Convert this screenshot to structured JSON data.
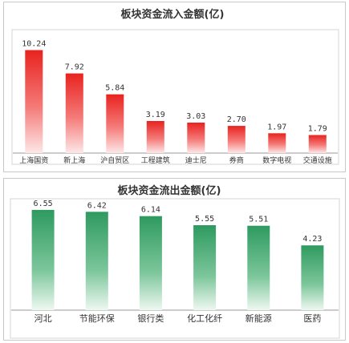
{
  "chart_data": [
    {
      "type": "bar",
      "title": "板块资金流入金额(亿)",
      "categories": [
        "上海国资",
        "新上海",
        "沪自贸区",
        "工程建筑",
        "迪士尼",
        "券商",
        "数字电视",
        "交通设施"
      ],
      "values": [
        10.24,
        7.92,
        5.84,
        3.19,
        3.03,
        2.7,
        1.97,
        1.79
      ],
      "value_labels": [
        "10.24",
        "7.92",
        "5.84",
        "3.19",
        "3.03",
        "2.70",
        "1.97",
        "1.79"
      ],
      "ylim": [
        0,
        11
      ],
      "grid": false,
      "color": "#e8231f"
    },
    {
      "type": "bar",
      "title": "板块资金流出金额(亿)",
      "categories": [
        "河北",
        "节能环保",
        "银行类",
        "化工化纤",
        "新能源",
        "医药"
      ],
      "values": [
        6.55,
        6.42,
        6.14,
        5.55,
        5.51,
        4.23
      ],
      "value_labels": [
        "6.55",
        "6.42",
        "6.14",
        "5.55",
        "5.51",
        "4.23"
      ],
      "ylim": [
        0,
        6.7
      ],
      "grid": false,
      "color": "#2e9a5f"
    }
  ]
}
